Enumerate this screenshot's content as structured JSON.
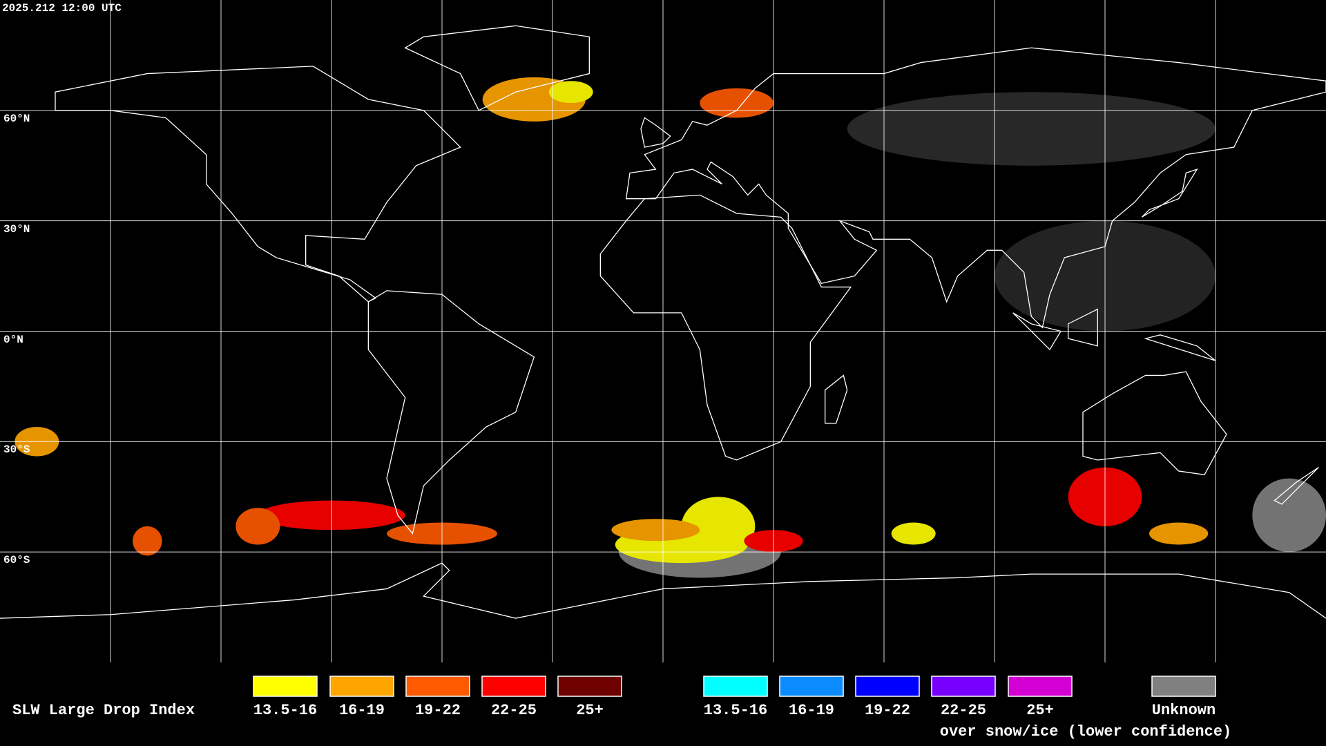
{
  "header": {
    "timestamp": "2025.212 12:00 UTC"
  },
  "map": {
    "latitude_labels": [
      "60°N",
      "30°N",
      "0°N",
      "30°S",
      "60°S"
    ]
  },
  "legend": {
    "title": "SLW Large Drop Index",
    "groups": [
      {
        "items": [
          {
            "label": "13.5-16",
            "color": "#ffff00"
          },
          {
            "label": "16-19",
            "color": "#ffa500"
          },
          {
            "label": "19-22",
            "color": "#ff5a00"
          },
          {
            "label": "22-25",
            "color": "#ff0000"
          },
          {
            "label": "25+",
            "color": "#6e0000"
          }
        ]
      },
      {
        "items": [
          {
            "label": "13.5-16",
            "color": "#00ffff"
          },
          {
            "label": "16-19",
            "color": "#0a8cff"
          },
          {
            "label": "19-22",
            "color": "#0000ff"
          },
          {
            "label": "22-25",
            "color": "#7800ff"
          },
          {
            "label": "25+",
            "color": "#d200d2"
          }
        ],
        "caption": "over snow/ice (lower confidence)"
      },
      {
        "items": [
          {
            "label": "Unknown",
            "color": "#808080"
          }
        ]
      }
    ]
  }
}
